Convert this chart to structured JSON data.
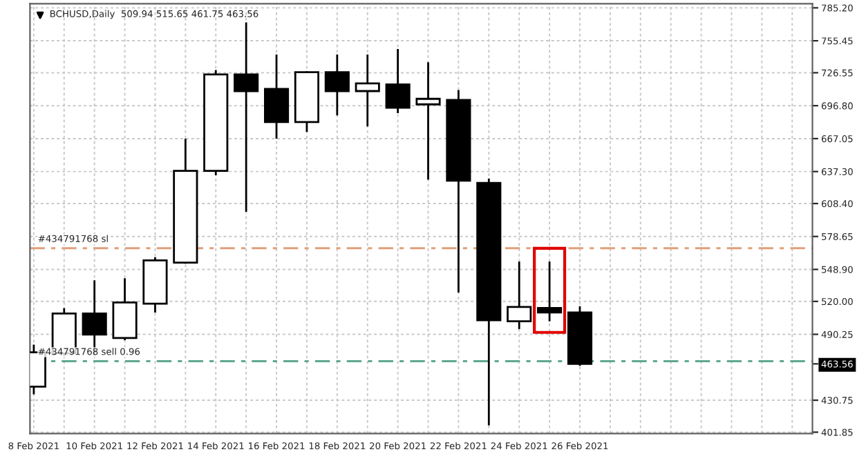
{
  "chart_data": {
    "type": "candlestick",
    "title": "BCHUSD,Daily  509.94 515.65 461.75 463.56",
    "x": [
      "2021-02-08",
      "2021-02-09",
      "2021-02-10",
      "2021-02-11",
      "2021-02-12",
      "2021-02-13",
      "2021-02-14",
      "2021-02-15",
      "2021-02-16",
      "2021-02-17",
      "2021-02-18",
      "2021-02-19",
      "2021-02-20",
      "2021-02-21",
      "2021-02-22",
      "2021-02-23",
      "2021-02-24",
      "2021-02-25",
      "2021-02-26"
    ],
    "ohlc": [
      [
        443,
        481,
        436,
        474
      ],
      [
        473,
        514,
        471,
        509
      ],
      [
        509,
        539,
        471,
        490
      ],
      [
        487,
        541,
        485,
        519
      ],
      [
        518,
        560,
        510,
        557
      ],
      [
        555,
        667,
        554,
        638
      ],
      [
        638,
        729,
        634,
        725
      ],
      [
        725,
        772,
        601,
        710
      ],
      [
        712,
        743,
        667,
        682
      ],
      [
        682,
        728,
        673,
        727
      ],
      [
        727,
        743,
        688,
        710
      ],
      [
        710,
        743,
        678,
        717
      ],
      [
        716,
        748,
        690,
        695
      ],
      [
        698,
        736,
        630,
        703
      ],
      [
        702,
        711,
        528,
        629
      ],
      [
        627,
        631,
        408,
        503
      ],
      [
        502,
        556,
        495,
        515
      ],
      [
        514,
        556,
        502,
        510
      ],
      [
        509.94,
        515.65,
        461.75,
        463.56
      ]
    ],
    "xlim": [
      "2021-02-07T21:00",
      "2021-03-05T16:00"
    ],
    "xticks": [
      {
        "value": "2021-02-08",
        "label": "8 Feb 2021"
      },
      {
        "value": "2021-02-09",
        "label": null
      },
      {
        "value": "2021-02-10",
        "label": "10 Feb 2021"
      },
      {
        "value": "2021-02-11",
        "label": null
      },
      {
        "value": "2021-02-12",
        "label": "12 Feb 2021"
      },
      {
        "value": "2021-02-13",
        "label": null
      },
      {
        "value": "2021-02-14",
        "label": "14 Feb 2021"
      },
      {
        "value": "2021-02-15",
        "label": null
      },
      {
        "value": "2021-02-16",
        "label": "16 Feb 2021"
      },
      {
        "value": "2021-02-17",
        "label": null
      },
      {
        "value": "2021-02-18",
        "label": "18 Feb 2021"
      },
      {
        "value": "2021-02-19",
        "label": null
      },
      {
        "value": "2021-02-20",
        "label": "20 Feb 2021"
      },
      {
        "value": "2021-02-21",
        "label": null
      },
      {
        "value": "2021-02-22",
        "label": "22 Feb 2021"
      },
      {
        "value": "2021-02-23",
        "label": null
      },
      {
        "value": "2021-02-24",
        "label": "24 Feb 2021"
      },
      {
        "value": "2021-02-25",
        "label": null
      },
      {
        "value": "2021-02-26",
        "label": "26 Feb 2021"
      },
      {
        "value": "2021-02-27",
        "label": null
      },
      {
        "value": "2021-02-28",
        "label": null
      },
      {
        "value": "2021-03-01",
        "label": null
      },
      {
        "value": "2021-03-02",
        "label": null
      },
      {
        "value": "2021-03-03",
        "label": null
      },
      {
        "value": "2021-03-04",
        "label": null
      },
      {
        "value": "2021-03-05",
        "label": null
      }
    ],
    "ylim": [
      400.6,
      789
    ],
    "yticks": [
      {
        "value": 785.2,
        "label": "785.20"
      },
      755.45,
      726.55,
      {
        "value": 696.8,
        "label": "696.80"
      },
      667.05,
      {
        "value": 637.3,
        "label": "637.30"
      },
      {
        "value": 608.4,
        "label": "608.40"
      },
      578.65,
      {
        "value": 548.9,
        "label": "548.90"
      },
      {
        "value": 520.0,
        "label": "520.00"
      },
      490.25,
      463.56,
      430.75,
      401.85
    ],
    "ref_lines": [
      {
        "axis": "y",
        "value": 568,
        "label": "#434791768 sl",
        "color": "#e0a07a",
        "line_style": "dashed"
      },
      {
        "axis": "y",
        "value": 466,
        "label": "#434791768 sell 0.96",
        "color": "#5fa88e",
        "line_style": "dashed"
      }
    ],
    "grid": true
  }
}
